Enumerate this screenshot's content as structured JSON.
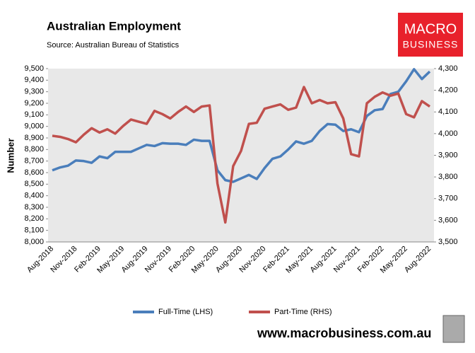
{
  "chart_data": {
    "type": "line",
    "title": "Australian Employment",
    "subtitle": "Source: Australian Bureau of Statistics",
    "y_label": "Number",
    "categories": [
      "Aug-2018",
      null,
      null,
      "Nov-2018",
      null,
      null,
      "Feb-2019",
      null,
      null,
      "May-2019",
      null,
      null,
      "Aug-2019",
      null,
      null,
      "Nov-2019",
      null,
      null,
      "Feb-2020",
      null,
      null,
      "May-2020",
      null,
      null,
      "Aug-2020",
      null,
      null,
      "Nov-2020",
      null,
      null,
      "Feb-2021",
      null,
      null,
      "May-2021",
      null,
      null,
      "Aug-2021",
      null,
      null,
      "Nov-2021",
      null,
      null,
      "Feb-2022",
      null,
      null,
      "May-2022",
      null,
      null,
      "Aug-2022"
    ],
    "series": [
      {
        "name": "Full-Time (LHS)",
        "color": "#4a7ebb",
        "axis": "y",
        "values": [
          8620,
          8645,
          8660,
          8705,
          8700,
          8685,
          8740,
          8725,
          8780,
          8780,
          8780,
          8810,
          8840,
          8830,
          8855,
          8850,
          8850,
          8840,
          8885,
          8875,
          8875,
          8620,
          8535,
          8520,
          8550,
          8580,
          8545,
          8640,
          8720,
          8740,
          8800,
          8870,
          8850,
          8875,
          8960,
          9020,
          9015,
          8960,
          8975,
          8950,
          9090,
          9140,
          9150,
          9280,
          9300,
          9390,
          9495,
          9410,
          9475
        ]
      },
      {
        "name": "Part-Time (RHS)",
        "color": "#c0504d",
        "axis": "y2",
        "values": [
          3990,
          3985,
          3975,
          3960,
          3995,
          4025,
          4005,
          4020,
          4000,
          4035,
          4065,
          4055,
          4045,
          4105,
          4090,
          4070,
          4100,
          4125,
          4100,
          4125,
          4130,
          3770,
          3590,
          3850,
          3920,
          4045,
          4050,
          4115,
          4125,
          4135,
          4110,
          4120,
          4215,
          4140,
          4155,
          4140,
          4145,
          4070,
          3905,
          3895,
          4140,
          4170,
          4190,
          4175,
          4185,
          4090,
          4075,
          4150,
          4125
        ]
      }
    ],
    "ylim": [
      8000,
      9500
    ],
    "yticks": [
      {
        "value": 8000,
        "label": "8,000"
      },
      {
        "value": 8100,
        "label": "8,100"
      },
      {
        "value": 8200,
        "label": "8,200"
      },
      {
        "value": 8300,
        "label": "8,300"
      },
      {
        "value": 8400,
        "label": "8,400"
      },
      {
        "value": 8500,
        "label": "8,500"
      },
      {
        "value": 8600,
        "label": "8,600"
      },
      {
        "value": 8700,
        "label": "8,700"
      },
      {
        "value": 8800,
        "label": "8,800"
      },
      {
        "value": 8900,
        "label": "8,900"
      },
      {
        "value": 9000,
        "label": "9,000"
      },
      {
        "value": 9100,
        "label": "9,100"
      },
      {
        "value": 9200,
        "label": "9,200"
      },
      {
        "value": 9300,
        "label": "9,300"
      },
      {
        "value": 9400,
        "label": "9,400"
      },
      {
        "value": 9500,
        "label": "9,500"
      }
    ],
    "y2lim": [
      3500,
      4300
    ],
    "y2ticks": [
      {
        "value": 3500,
        "label": "3,500"
      },
      {
        "value": 3600,
        "label": "3,600"
      },
      {
        "value": 3700,
        "label": "3,700"
      },
      {
        "value": 3800,
        "label": "3,800"
      },
      {
        "value": 3900,
        "label": "3,900"
      },
      {
        "value": 4000,
        "label": "4,000"
      },
      {
        "value": 4100,
        "label": "4,100"
      },
      {
        "value": 4200,
        "label": "4,200"
      },
      {
        "value": 4300,
        "label": "4,300"
      }
    ],
    "legend": "bottom",
    "background": "#e8e8e8"
  },
  "logo": {
    "line1": "MACRO",
    "line2": "BUSINESS"
  },
  "footer": "www.macrobusiness.com.au"
}
